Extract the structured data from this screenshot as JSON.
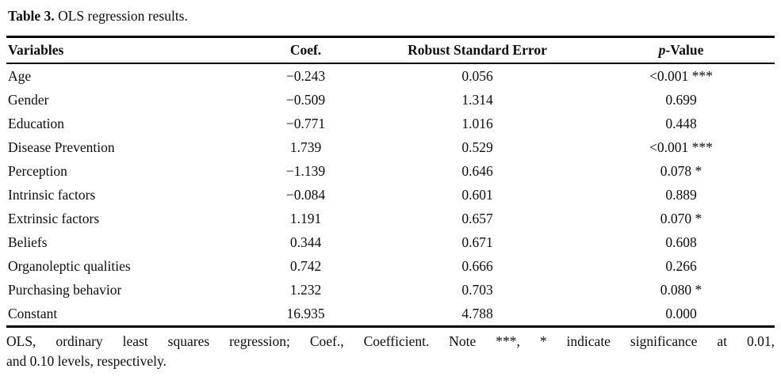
{
  "caption": {
    "label": "Table 3.",
    "text": " OLS regression results."
  },
  "table": {
    "header": {
      "variables": "Variables",
      "coef": "Coef.",
      "rse": "Robust Standard Error",
      "p_italic": "p",
      "p_rest": "-Value"
    },
    "rows": [
      {
        "variable": "Age",
        "coef": "−0.243",
        "rse": "0.056",
        "p": "<0.001 ***"
      },
      {
        "variable": "Gender",
        "coef": "−0.509",
        "rse": "1.314",
        "p": "0.699"
      },
      {
        "variable": "Education",
        "coef": "−0.771",
        "rse": "1.016",
        "p": "0.448"
      },
      {
        "variable": "Disease Prevention",
        "coef": "1.739",
        "rse": "0.529",
        "p": "<0.001 ***"
      },
      {
        "variable": "Perception",
        "coef": "−1.139",
        "rse": "0.646",
        "p": "0.078 *"
      },
      {
        "variable": "Intrinsic factors",
        "coef": "−0.084",
        "rse": "0.601",
        "p": "0.889"
      },
      {
        "variable": "Extrinsic factors",
        "coef": "1.191",
        "rse": "0.657",
        "p": "0.070 *"
      },
      {
        "variable": "Beliefs",
        "coef": "0.344",
        "rse": "0.671",
        "p": "0.608"
      },
      {
        "variable": "Organoleptic qualities",
        "coef": "0.742",
        "rse": "0.666",
        "p": "0.266"
      },
      {
        "variable": "Purchasing behavior",
        "coef": "1.232",
        "rse": "0.703",
        "p": "0.080 *"
      },
      {
        "variable": "Constant",
        "coef": "16.935",
        "rse": "4.788",
        "p": "0.000"
      }
    ]
  },
  "footnote": {
    "line1": "OLS, ordinary least squares regression; Coef., Coefficient. Note ***, * indicate significance at 0.01,",
    "line2": "and 0.10 levels, respectively."
  },
  "colors": {
    "text": "#0d0d0d",
    "rule": "#000000",
    "background": "#ffffff"
  }
}
